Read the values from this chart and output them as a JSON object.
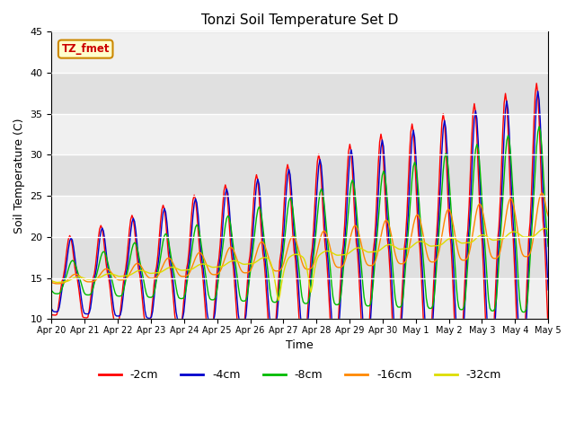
{
  "title": "Tonzi Soil Temperature Set D",
  "xlabel": "Time",
  "ylabel": "Soil Temperature (C)",
  "ylim": [
    10,
    45
  ],
  "xlim": [
    0,
    360
  ],
  "background_color": "#ffffff",
  "plot_bg_color": "#e8e8e8",
  "legend_labels": [
    "-2cm",
    "-4cm",
    "-8cm",
    "-16cm",
    "-32cm"
  ],
  "legend_colors": [
    "#ff0000",
    "#0000cc",
    "#00bb00",
    "#ff8800",
    "#dddd00"
  ],
  "label_box_text": "TZ_fmet",
  "label_box_facecolor": "#ffffcc",
  "label_box_edgecolor": "#cc8800",
  "label_box_textcolor": "#cc0000",
  "x_tick_labels": [
    "Apr 20",
    "Apr 21",
    "Apr 22",
    "Apr 23",
    "Apr 24",
    "Apr 25",
    "Apr 26",
    "Apr 27",
    "Apr 28",
    "Apr 29",
    "Apr 30",
    "May 1",
    "May 2",
    "May 3",
    "May 4",
    "May 5"
  ],
  "x_tick_positions": [
    0,
    24,
    48,
    72,
    96,
    120,
    144,
    168,
    192,
    216,
    240,
    264,
    288,
    312,
    336,
    360
  ],
  "figsize": [
    6.4,
    4.8
  ],
  "dpi": 100
}
